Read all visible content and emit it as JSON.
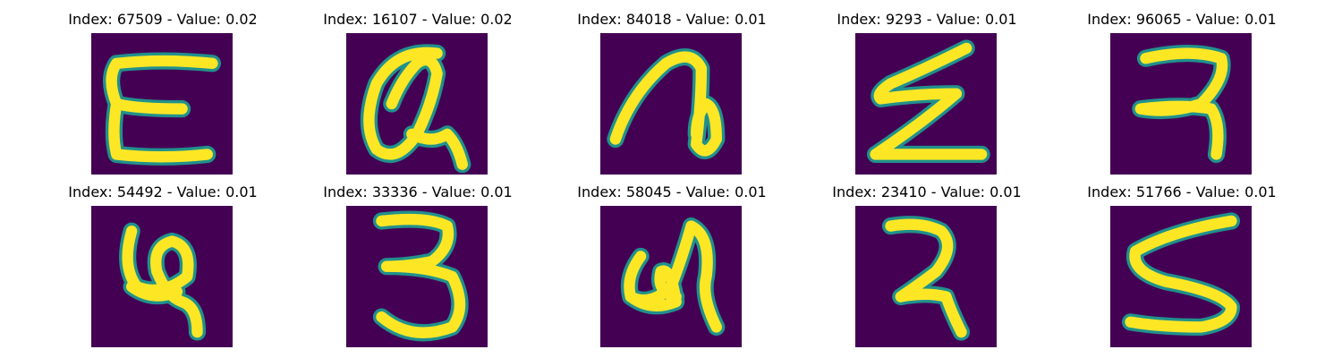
{
  "panels": [
    {
      "title": "Index: 67509 - Value: 0.02",
      "glyph": "E",
      "icon": "handwritten-E-image"
    },
    {
      "title": "Index: 16107 - Value: 0.02",
      "glyph": "Q",
      "icon": "handwritten-Q-image"
    },
    {
      "title": "Index: 84018 - Value: 0.01",
      "glyph": "n",
      "icon": "handwritten-loop-image"
    },
    {
      "title": "Index: 9293 - Value: 0.01",
      "glyph": "Z",
      "icon": "handwritten-Z-image"
    },
    {
      "title": "Index: 96065 - Value: 0.01",
      "glyph": "2",
      "icon": "handwritten-2-image"
    },
    {
      "title": "Index: 54492 - Value: 0.01",
      "glyph": "6",
      "icon": "handwritten-swirl-image"
    },
    {
      "title": "Index: 33336 - Value: 0.01",
      "glyph": "3",
      "icon": "handwritten-3-image"
    },
    {
      "title": "Index: 58045 - Value: 0.01",
      "glyph": "a",
      "icon": "handwritten-swirl-image"
    },
    {
      "title": "Index: 23410 - Value: 0.01",
      "glyph": "2",
      "icon": "handwritten-2-image"
    },
    {
      "title": "Index: 51766 - Value: 0.01",
      "glyph": "S",
      "icon": "handwritten-S-image"
    }
  ],
  "colors": {
    "background": "#440154",
    "stroke_core": "#fde725",
    "stroke_edge": "#21918c"
  }
}
